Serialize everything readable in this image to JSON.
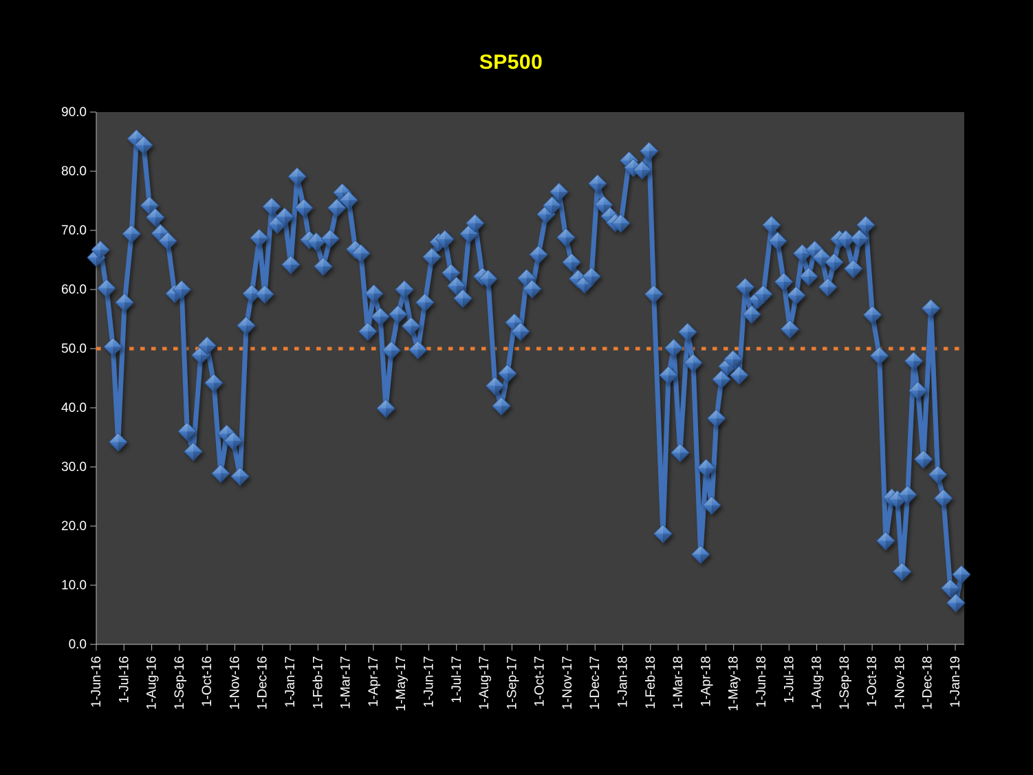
{
  "title": {
    "text": "SP500",
    "color": "#FFFF00"
  },
  "colors": {
    "page_bg": "#000000",
    "plot_bg": "#3E3E3E",
    "axis": "#BFBFBF",
    "tick_label": "#FFFFFF",
    "series_line": "#3F70B7",
    "marker_light": "#6FA0DA",
    "marker_mid": "#4377C0",
    "marker_dark": "#2D5694",
    "reference_line": "#ED7D31"
  },
  "chart_data": {
    "type": "line",
    "title": "SP500",
    "grid": false,
    "legend": "none",
    "x_axis": {
      "unit": "months since 1-Jun-16 (weekly data)",
      "tick_labels": [
        "1-Jun-16",
        "1-Jul-16",
        "1-Aug-16",
        "1-Sep-16",
        "1-Oct-16",
        "1-Nov-16",
        "1-Dec-16",
        "1-Jan-17",
        "1-Feb-17",
        "1-Mar-17",
        "1-Apr-17",
        "1-May-17",
        "1-Jun-17",
        "1-Jul-17",
        "1-Aug-17",
        "1-Sep-17",
        "1-Oct-17",
        "1-Nov-17",
        "1-Dec-17",
        "1-Jan-18",
        "1-Feb-18",
        "1-Mar-18",
        "1-Apr-18",
        "1-May-18",
        "1-Jun-18",
        "1-Jul-18",
        "1-Aug-18",
        "1-Sep-18",
        "1-Oct-18",
        "1-Nov-18",
        "1-Dec-18",
        "1-Jan-19"
      ]
    },
    "y_axis": {
      "min": 0,
      "max": 90,
      "tick_step": 10,
      "tick_labels": [
        "0.0",
        "10.0",
        "20.0",
        "30.0",
        "40.0",
        "50.0",
        "60.0",
        "70.0",
        "80.0",
        "90.0"
      ]
    },
    "reference_line": {
      "value": 50.0,
      "style": "dotted",
      "color": "#ED7D31"
    },
    "series": [
      {
        "name": "SP500",
        "marker": "diamond-3d",
        "points": [
          [
            0.0,
            65.4
          ],
          [
            0.15,
            66.7
          ],
          [
            0.37,
            60.2
          ],
          [
            0.6,
            50.3
          ],
          [
            0.79,
            34.2
          ],
          [
            1.02,
            57.8
          ],
          [
            1.27,
            69.4
          ],
          [
            1.45,
            85.5
          ],
          [
            1.71,
            84.4
          ],
          [
            1.92,
            74.2
          ],
          [
            2.13,
            72.2
          ],
          [
            2.32,
            69.5
          ],
          [
            2.58,
            68.2
          ],
          [
            2.83,
            59.3
          ],
          [
            3.08,
            60.0
          ],
          [
            3.28,
            36.0
          ],
          [
            3.5,
            32.6
          ],
          [
            3.77,
            48.9
          ],
          [
            4.0,
            50.5
          ],
          [
            4.24,
            44.2
          ],
          [
            4.49,
            28.9
          ],
          [
            4.71,
            35.6
          ],
          [
            4.94,
            34.4
          ],
          [
            5.19,
            28.4
          ],
          [
            5.41,
            53.9
          ],
          [
            5.61,
            59.3
          ],
          [
            5.88,
            68.7
          ],
          [
            6.08,
            59.2
          ],
          [
            6.33,
            74.0
          ],
          [
            6.53,
            71.0
          ],
          [
            6.8,
            72.3
          ],
          [
            7.02,
            64.2
          ],
          [
            7.25,
            79.1
          ],
          [
            7.49,
            73.8
          ],
          [
            7.69,
            68.4
          ],
          [
            7.94,
            68.1
          ],
          [
            8.19,
            63.9
          ],
          [
            8.44,
            68.6
          ],
          [
            8.68,
            73.8
          ],
          [
            8.88,
            76.4
          ],
          [
            9.11,
            75.1
          ],
          [
            9.35,
            66.8
          ],
          [
            9.55,
            66.1
          ],
          [
            9.8,
            52.9
          ],
          [
            10.02,
            59.3
          ],
          [
            10.25,
            55.4
          ],
          [
            10.45,
            39.9
          ],
          [
            10.65,
            49.7
          ],
          [
            10.89,
            55.8
          ],
          [
            11.12,
            60.0
          ],
          [
            11.36,
            53.8
          ],
          [
            11.61,
            49.8
          ],
          [
            11.86,
            57.8
          ],
          [
            12.11,
            65.5
          ],
          [
            12.36,
            68.0
          ],
          [
            12.58,
            68.5
          ],
          [
            12.8,
            62.8
          ],
          [
            13.0,
            60.6
          ],
          [
            13.23,
            58.5
          ],
          [
            13.45,
            69.4
          ],
          [
            13.67,
            71.2
          ],
          [
            13.94,
            62.2
          ],
          [
            14.14,
            61.8
          ],
          [
            14.39,
            43.7
          ],
          [
            14.62,
            40.3
          ],
          [
            14.84,
            45.8
          ],
          [
            15.09,
            54.4
          ],
          [
            15.31,
            52.9
          ],
          [
            15.53,
            61.9
          ],
          [
            15.73,
            60.1
          ],
          [
            15.96,
            65.9
          ],
          [
            16.23,
            72.7
          ],
          [
            16.45,
            74.2
          ],
          [
            16.7,
            76.5
          ],
          [
            16.95,
            68.8
          ],
          [
            17.15,
            64.6
          ],
          [
            17.39,
            61.8
          ],
          [
            17.62,
            60.9
          ],
          [
            17.87,
            62.2
          ],
          [
            18.09,
            77.9
          ],
          [
            18.31,
            74.3
          ],
          [
            18.54,
            72.4
          ],
          [
            18.73,
            71.3
          ],
          [
            18.93,
            71.2
          ],
          [
            19.23,
            81.8
          ],
          [
            19.38,
            80.6
          ],
          [
            19.7,
            80.2
          ],
          [
            19.95,
            83.4
          ],
          [
            20.12,
            59.2
          ],
          [
            20.45,
            18.7
          ],
          [
            20.65,
            45.5
          ],
          [
            20.84,
            50.1
          ],
          [
            21.07,
            32.4
          ],
          [
            21.34,
            52.8
          ],
          [
            21.54,
            47.6
          ],
          [
            21.81,
            15.2
          ],
          [
            22.01,
            29.8
          ],
          [
            22.21,
            23.5
          ],
          [
            22.38,
            38.2
          ],
          [
            22.56,
            44.8
          ],
          [
            22.78,
            47.0
          ],
          [
            22.98,
            48.2
          ],
          [
            23.2,
            45.5
          ],
          [
            23.42,
            60.4
          ],
          [
            23.65,
            55.8
          ],
          [
            23.87,
            58.3
          ],
          [
            24.07,
            59.2
          ],
          [
            24.37,
            70.9
          ],
          [
            24.59,
            68.2
          ],
          [
            24.81,
            61.3
          ],
          [
            25.03,
            53.3
          ],
          [
            25.26,
            59.0
          ],
          [
            25.48,
            66.1
          ],
          [
            25.71,
            62.2
          ],
          [
            25.93,
            66.7
          ],
          [
            26.18,
            65.4
          ],
          [
            26.4,
            60.4
          ],
          [
            26.63,
            64.6
          ],
          [
            26.82,
            68.5
          ],
          [
            27.05,
            68.5
          ],
          [
            27.32,
            63.5
          ],
          [
            27.54,
            68.6
          ],
          [
            27.77,
            70.9
          ],
          [
            28.01,
            55.7
          ],
          [
            28.26,
            48.8
          ],
          [
            28.49,
            17.5
          ],
          [
            28.71,
            24.8
          ],
          [
            28.91,
            24.5
          ],
          [
            29.08,
            12.3
          ],
          [
            29.28,
            25.3
          ],
          [
            29.5,
            47.9
          ],
          [
            29.65,
            42.9
          ],
          [
            29.85,
            31.3
          ],
          [
            30.12,
            56.8
          ],
          [
            30.37,
            28.7
          ],
          [
            30.57,
            24.7
          ],
          [
            30.82,
            9.5
          ],
          [
            31.02,
            7.0
          ],
          [
            31.22,
            11.8
          ]
        ]
      }
    ]
  }
}
